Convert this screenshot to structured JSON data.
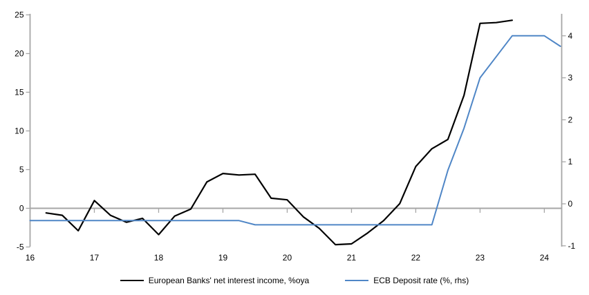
{
  "chart_data": {
    "type": "line",
    "title": "",
    "x_axis": {
      "label": "",
      "tick_values": [
        16,
        17,
        18,
        19,
        20,
        21,
        22,
        23,
        24
      ],
      "tick_labels": [
        "16",
        "17",
        "18",
        "19",
        "20",
        "21",
        "22",
        "23",
        "24"
      ],
      "range": [
        16,
        24.27
      ]
    },
    "left_axis": {
      "label": "",
      "tick_values": [
        25,
        20,
        15,
        10,
        5,
        0,
        -5
      ],
      "tick_labels": [
        "25",
        "20",
        "15",
        "10",
        "5",
        "0",
        "-5"
      ],
      "range": [
        -5,
        25
      ]
    },
    "right_axis": {
      "label": "",
      "tick_values": [
        4,
        3,
        2,
        1,
        0,
        -1
      ],
      "tick_labels": [
        "4",
        "3",
        "2",
        "1",
        "0",
        "-1"
      ],
      "range": [
        -1,
        4.5
      ]
    },
    "grid": "zero-line-only",
    "legend_position": "bottom-center",
    "series": [
      {
        "id": "nii",
        "name": "European Banks' net interest income, %oya",
        "axis": "left",
        "color": "#000000",
        "points": [
          [
            16.25,
            -0.6
          ],
          [
            16.5,
            -0.9
          ],
          [
            16.75,
            -2.9
          ],
          [
            17,
            1
          ],
          [
            17.25,
            -0.9
          ],
          [
            17.5,
            -1.8
          ],
          [
            17.75,
            -1.3
          ],
          [
            18,
            -3.4
          ],
          [
            18.25,
            -1
          ],
          [
            18.5,
            -0.1
          ],
          [
            18.75,
            3.4
          ],
          [
            19,
            4.5
          ],
          [
            19.25,
            4.3
          ],
          [
            19.5,
            4.4
          ],
          [
            19.75,
            1.3
          ],
          [
            20,
            1.1
          ],
          [
            20.25,
            -1.1
          ],
          [
            20.5,
            -2.6
          ],
          [
            20.75,
            -4.7
          ],
          [
            21,
            -4.6
          ],
          [
            21.25,
            -3.2
          ],
          [
            21.5,
            -1.6
          ],
          [
            21.75,
            0.6
          ],
          [
            22,
            5.4
          ],
          [
            22.25,
            7.7
          ],
          [
            22.5,
            8.9
          ],
          [
            22.75,
            14.6
          ],
          [
            23,
            23.9
          ],
          [
            23.25,
            24
          ],
          [
            23.5,
            24.3
          ]
        ]
      },
      {
        "id": "ecb-deposit-rate",
        "name": "ECB Deposit rate (%, rhs)",
        "axis": "right",
        "color": "#4f86c6",
        "points": [
          [
            16,
            -0.4
          ],
          [
            16.25,
            -0.4
          ],
          [
            16.5,
            -0.4
          ],
          [
            16.75,
            -0.4
          ],
          [
            17,
            -0.4
          ],
          [
            17.25,
            -0.4
          ],
          [
            17.5,
            -0.4
          ],
          [
            17.75,
            -0.4
          ],
          [
            18,
            -0.4
          ],
          [
            18.25,
            -0.4
          ],
          [
            18.5,
            -0.4
          ],
          [
            18.75,
            -0.4
          ],
          [
            19,
            -0.4
          ],
          [
            19.25,
            -0.4
          ],
          [
            19.5,
            -0.5
          ],
          [
            19.75,
            -0.5
          ],
          [
            20,
            -0.5
          ],
          [
            20.25,
            -0.5
          ],
          [
            20.5,
            -0.5
          ],
          [
            20.75,
            -0.5
          ],
          [
            21,
            -0.5
          ],
          [
            21.25,
            -0.5
          ],
          [
            21.5,
            -0.5
          ],
          [
            21.75,
            -0.5
          ],
          [
            22,
            -0.5
          ],
          [
            22.25,
            -0.5
          ],
          [
            22.5,
            0.8
          ],
          [
            22.75,
            1.8
          ],
          [
            23,
            3
          ],
          [
            23.25,
            3.5
          ],
          [
            23.5,
            4
          ],
          [
            23.75,
            4
          ],
          [
            24,
            4
          ],
          [
            24.25,
            3.75
          ]
        ]
      }
    ],
    "colors": {
      "axis_gray": "#a6a6a6",
      "text": "#000000",
      "background": "#ffffff"
    }
  }
}
